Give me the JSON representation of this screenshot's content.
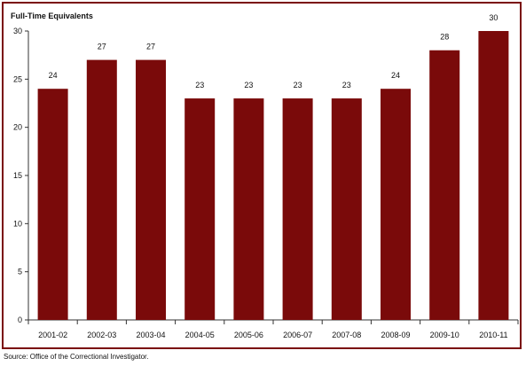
{
  "chart_data": {
    "type": "bar",
    "ylabel": "Full-Time Equivalents",
    "categories": [
      "2001-02",
      "2002-03",
      "2003-04",
      "2004-05",
      "2005-06",
      "2006-07",
      "2007-08",
      "2008-09",
      "2009-10",
      "2010-11"
    ],
    "values": [
      24,
      27,
      27,
      23,
      23,
      23,
      23,
      24,
      28,
      30
    ],
    "ylim": [
      0,
      30
    ],
    "yticks": [
      0,
      5,
      10,
      15,
      20,
      25,
      30
    ],
    "grid": false,
    "bar_color": "#7a0a0a",
    "frame_color": "#7a0a0a"
  },
  "source": "Source:  Office of the Correctional Investigator."
}
